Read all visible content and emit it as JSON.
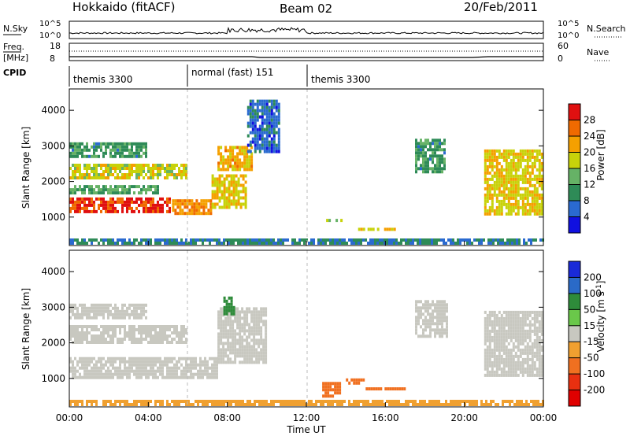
{
  "header": {
    "station": "Hokkaido (fitACF)",
    "beam": "Beam 02",
    "date": "20/Feb/2011"
  },
  "noise_panel": {
    "left_label": "N.Sky",
    "left_ticks": [
      "10^5",
      "10^0"
    ],
    "right_ticks": [
      "10^5",
      "10^0"
    ],
    "right_label": "N.Search"
  },
  "freq_panel": {
    "left_label_1": "Freq.",
    "left_label_2": "[MHz]",
    "left_ticks": [
      "18",
      "8"
    ],
    "right_ticks": [
      "60",
      "0"
    ],
    "right_label": "Nave"
  },
  "cpid_panel": {
    "label": "CPID",
    "segments": [
      {
        "name": "themis 3300",
        "start_hour": 0,
        "end_hour": 6
      },
      {
        "name": "normal (fast) 151",
        "start_hour": 6,
        "end_hour": 12
      },
      {
        "name": "themis 3300",
        "start_hour": 12,
        "end_hour": 24
      }
    ]
  },
  "axes": {
    "ylabel": "Slant Range [km]",
    "xlabel": "Time UT",
    "x_ticks": [
      "00:00",
      "04:00",
      "08:00",
      "12:00",
      "16:00",
      "20:00",
      "00:00"
    ],
    "y_ticks": [
      "1000",
      "2000",
      "3000",
      "4000"
    ]
  },
  "colorbars": {
    "power": {
      "label": "Power [dB]",
      "ticks": [
        "28",
        "24",
        "20",
        "16",
        "12",
        "8",
        "4"
      ],
      "colors": [
        "#1010e0",
        "#2a6ad0",
        "#2e8b57",
        "#66b266",
        "#c8d20a",
        "#f5a000",
        "#f06a00",
        "#e01010"
      ]
    },
    "velocity": {
      "label": "Velocity [m s",
      "label_sup": "-1",
      "label_end": "]",
      "ticks": [
        "200",
        "100",
        "50",
        "15",
        "-15",
        "-50",
        "-100",
        "-200"
      ],
      "colors": [
        "#1a2ad8",
        "#2a6ac8",
        "#2e8b3a",
        "#6ac84a",
        "#c8c8c0",
        "#f0a030",
        "#f07020",
        "#e83010",
        "#e00000"
      ]
    }
  },
  "chart_data": [
    {
      "type": "heatmap",
      "title": "Power",
      "xlabel": "Time UT",
      "ylabel": "Slant Range [km]",
      "xlim_hours": [
        0,
        24
      ],
      "ylim": [
        200,
        4600
      ],
      "colorbar_range_dB": [
        0,
        30
      ],
      "regions": [
        {
          "t0": 0.0,
          "t1": 5.2,
          "r0": 1150,
          "r1": 1550,
          "value": 27
        },
        {
          "t0": 5.2,
          "t1": 7.2,
          "r0": 1100,
          "r1": 1500,
          "value": 22
        },
        {
          "t0": 7.2,
          "t1": 9.0,
          "r0": 1200,
          "r1": 2200,
          "value": 18
        },
        {
          "t0": 0.0,
          "t1": 4.5,
          "r0": 1600,
          "r1": 1900,
          "value": 12
        },
        {
          "t0": 0.0,
          "t1": 6.0,
          "r0": 2100,
          "r1": 2500,
          "value": 17
        },
        {
          "t0": 0.0,
          "t1": 4.0,
          "r0": 2700,
          "r1": 3100,
          "value": 10
        },
        {
          "t0": 7.5,
          "t1": 9.3,
          "r0": 2300,
          "r1": 3000,
          "value": 20
        },
        {
          "t0": 9.0,
          "t1": 10.7,
          "r0": 2800,
          "r1": 4300,
          "value": 6
        },
        {
          "t0": 14.5,
          "t1": 16.5,
          "r0": 600,
          "r1": 700,
          "value": 18
        },
        {
          "t0": 13.0,
          "t1": 14.0,
          "r0": 850,
          "r1": 950,
          "value": 16
        },
        {
          "t0": 17.5,
          "t1": 19.0,
          "r0": 2200,
          "r1": 3200,
          "value": 10
        },
        {
          "t0": 21.0,
          "t1": 24.0,
          "r0": 1000,
          "r1": 2900,
          "value": 18
        },
        {
          "t0": 0.0,
          "t1": 24.0,
          "r0": 200,
          "r1": 400,
          "value": 8
        }
      ]
    },
    {
      "type": "heatmap",
      "title": "Velocity",
      "xlabel": "Time UT",
      "ylabel": "Slant Range [km]",
      "xlim_hours": [
        0,
        24
      ],
      "ylim": [
        200,
        4600
      ],
      "colorbar_range_ms": [
        -200,
        200
      ],
      "regions": [
        {
          "t0": 0.0,
          "t1": 7.5,
          "r0": 1000,
          "r1": 1600,
          "value": 0
        },
        {
          "t0": 0.0,
          "t1": 6.0,
          "r0": 2000,
          "r1": 2500,
          "value": 0
        },
        {
          "t0": 0.0,
          "t1": 4.0,
          "r0": 2700,
          "r1": 3100,
          "value": 0
        },
        {
          "t0": 7.5,
          "t1": 10.0,
          "r0": 1400,
          "r1": 3000,
          "value": 0
        },
        {
          "t0": 7.8,
          "t1": 8.4,
          "r0": 2800,
          "r1": 3300,
          "value": 60
        },
        {
          "t0": 12.8,
          "t1": 13.8,
          "r0": 500,
          "r1": 900,
          "value": -90
        },
        {
          "t0": 14.0,
          "t1": 15.0,
          "r0": 800,
          "r1": 1000,
          "value": -60
        },
        {
          "t0": 15.0,
          "t1": 17.0,
          "r0": 650,
          "r1": 750,
          "value": -70
        },
        {
          "t0": 17.5,
          "t1": 19.2,
          "r0": 2100,
          "r1": 3200,
          "value": 0
        },
        {
          "t0": 21.0,
          "t1": 24.0,
          "r0": 1000,
          "r1": 2900,
          "value": 0
        },
        {
          "t0": 0.0,
          "t1": 24.0,
          "r0": 200,
          "r1": 400,
          "value": -20
        }
      ]
    }
  ]
}
